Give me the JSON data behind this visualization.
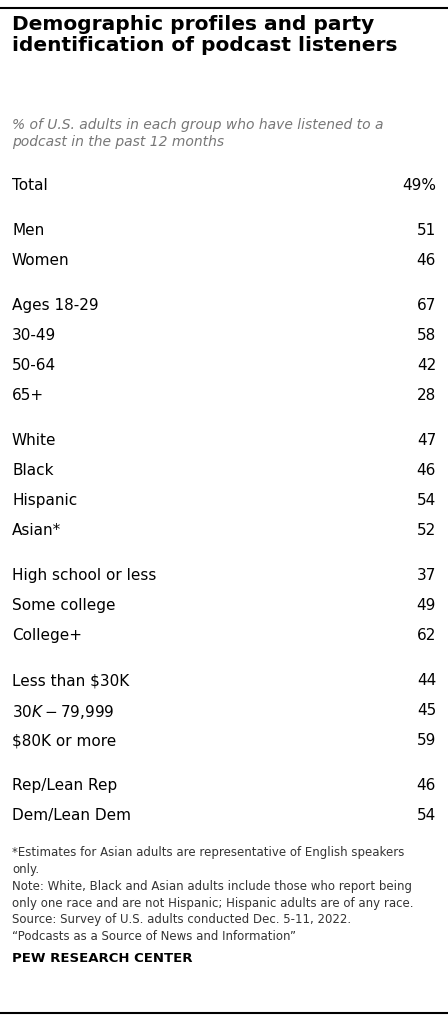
{
  "title": "Demographic profiles and party\nidentification of podcast listeners",
  "subtitle": "% of U.S. adults in each group who have listened to a\npodcast in the past 12 months",
  "rows": [
    {
      "label": "Total",
      "value": "49%",
      "bold": false,
      "gap_after": true
    },
    {
      "label": "Men",
      "value": "51",
      "bold": false,
      "gap_after": false
    },
    {
      "label": "Women",
      "value": "46",
      "bold": false,
      "gap_after": true
    },
    {
      "label": "Ages 18-29",
      "value": "67",
      "bold": false,
      "gap_after": false
    },
    {
      "label": "30-49",
      "value": "58",
      "bold": false,
      "gap_after": false
    },
    {
      "label": "50-64",
      "value": "42",
      "bold": false,
      "gap_after": false
    },
    {
      "label": "65+",
      "value": "28",
      "bold": false,
      "gap_after": true
    },
    {
      "label": "White",
      "value": "47",
      "bold": false,
      "gap_after": false
    },
    {
      "label": "Black",
      "value": "46",
      "bold": false,
      "gap_after": false
    },
    {
      "label": "Hispanic",
      "value": "54",
      "bold": false,
      "gap_after": false
    },
    {
      "label": "Asian*",
      "value": "52",
      "bold": false,
      "gap_after": true
    },
    {
      "label": "High school or less",
      "value": "37",
      "bold": false,
      "gap_after": false
    },
    {
      "label": "Some college",
      "value": "49",
      "bold": false,
      "gap_after": false
    },
    {
      "label": "College+",
      "value": "62",
      "bold": false,
      "gap_after": true
    },
    {
      "label": "Less than $30K",
      "value": "44",
      "bold": false,
      "gap_after": false
    },
    {
      "label": "$30K-$79,999",
      "value": "45",
      "bold": false,
      "gap_after": false
    },
    {
      "label": "$80K or more",
      "value": "59",
      "bold": false,
      "gap_after": true
    },
    {
      "label": "Rep/Lean Rep",
      "value": "46",
      "bold": false,
      "gap_after": false
    },
    {
      "label": "Dem/Lean Dem",
      "value": "54",
      "bold": false,
      "gap_after": false
    }
  ],
  "footnote1": "*Estimates for Asian adults are representative of English speakers\nonly.",
  "footnote2": "Note: White, Black and Asian adults include those who report being\nonly one race and are not Hispanic; Hispanic adults are of any race.\nSource: Survey of U.S. adults conducted Dec. 5-11, 2022.\n“Podcasts as a Source of News and Information”",
  "footer": "PEW RESEARCH CENTER",
  "bg_color": "#ffffff",
  "text_color": "#000000",
  "subtitle_color": "#777777",
  "footnote_color": "#333333",
  "title_fontsize": 14.5,
  "subtitle_fontsize": 10,
  "row_fontsize": 11,
  "footnote_fontsize": 8.5,
  "footer_fontsize": 9.5,
  "top_line_color": "#000000",
  "bottom_line_color": "#000000"
}
